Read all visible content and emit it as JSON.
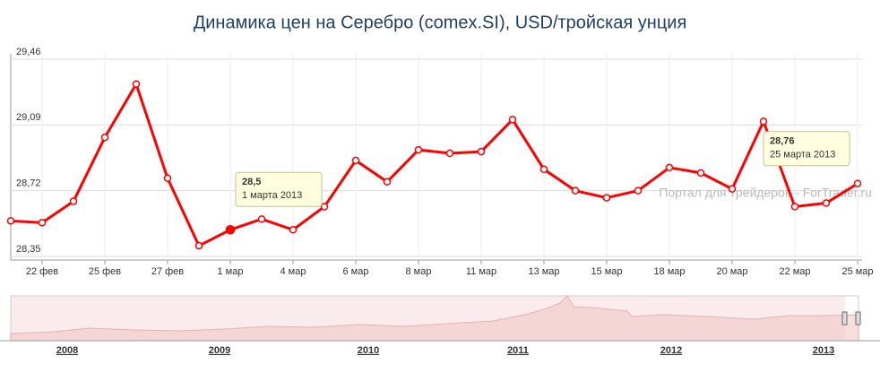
{
  "chart_data": {
    "type": "line",
    "title": "Динамика цен на Серебро (comex.SI), USD/тройская унция",
    "watermark": "Портал для трейдеров - ForTrader.ru",
    "categories": [
      null,
      "22 фев",
      null,
      "25 фев",
      null,
      "27 фев",
      null,
      "1 мар",
      null,
      "4 мар",
      null,
      "6 мар",
      null,
      "8 мар",
      null,
      "11 мар",
      null,
      "13 мар",
      null,
      "15 мар",
      null,
      "18 мар",
      null,
      "20 мар",
      null,
      "22 мар",
      null,
      "25 мар"
    ],
    "series": [
      {
        "color": "#ff0000",
        "values": [
          28.55,
          28.54,
          28.66,
          29.02,
          29.32,
          28.79,
          28.41,
          28.5,
          28.56,
          28.5,
          28.63,
          28.89,
          28.77,
          28.95,
          28.93,
          28.94,
          29.12,
          28.84,
          28.72,
          28.68,
          28.72,
          28.85,
          28.82,
          28.73,
          29.11,
          28.63,
          28.65,
          28.76
        ],
        "value_labels": [
          null,
          null,
          null,
          null,
          null,
          null,
          null,
          "28,5",
          null,
          null,
          null,
          null,
          null,
          null,
          null,
          null,
          null,
          null,
          null,
          null,
          null,
          null,
          null,
          null,
          null,
          null,
          null,
          "28,76"
        ],
        "date_labels": [
          null,
          null,
          null,
          null,
          null,
          null,
          null,
          "1 марта 2013",
          null,
          null,
          null,
          null,
          null,
          null,
          null,
          null,
          null,
          null,
          null,
          null,
          null,
          null,
          null,
          null,
          null,
          null,
          null,
          "25 марта 2013"
        ]
      }
    ],
    "ylim": [
      28.35,
      29.46
    ],
    "yticks": [
      {
        "value": 28.35,
        "label": "28,35"
      },
      {
        "value": 28.72,
        "label": "28,72"
      },
      {
        "value": 29.09,
        "label": "29,09"
      },
      {
        "value": 29.46,
        "label": "29,46"
      }
    ],
    "grid": true,
    "navigator_years": [
      "2008",
      "2009",
      "2010",
      "2011",
      "2012",
      "2013"
    ]
  }
}
